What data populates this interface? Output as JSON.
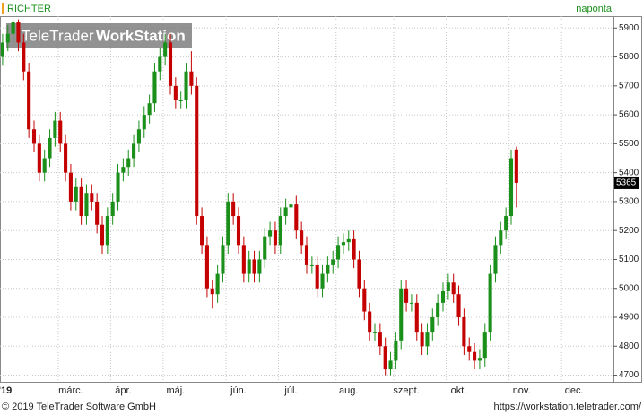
{
  "header": {
    "symbol": "RICHTER",
    "interval": "naponta"
  },
  "watermark": {
    "brand": "TeleTrader",
    "product": "WorkStation"
  },
  "footer": {
    "copyright": "© 2019 TeleTrader Software GmbH",
    "url": "https://workstation.teletrader.com/"
  },
  "chart_data": {
    "type": "candlestick",
    "categories": [
      null,
      "'19",
      null,
      null,
      null,
      null,
      null,
      null,
      null,
      null,
      null,
      null,
      null,
      "márc.",
      null,
      null,
      null,
      null,
      null,
      null,
      null,
      null,
      null,
      "ápr.",
      null,
      null,
      null,
      null,
      null,
      null,
      null,
      null,
      null,
      "máj.",
      null,
      null,
      null,
      null,
      null,
      null,
      null,
      null,
      null,
      null,
      null,
      "jún.",
      null,
      null,
      null,
      null,
      null,
      null,
      null,
      null,
      null,
      "júl.",
      null,
      null,
      null,
      null,
      null,
      null,
      null,
      null,
      null,
      null,
      "aug.",
      null,
      null,
      null,
      null,
      null,
      null,
      null,
      null,
      null,
      null,
      "szept.",
      null,
      null,
      null,
      null,
      null,
      null,
      null,
      null,
      null,
      "okt.",
      null,
      null,
      null,
      null,
      null,
      null,
      null,
      null,
      null,
      null,
      null,
      "nov.",
      null,
      null,
      null,
      null,
      null,
      null,
      null,
      null,
      null,
      "dec.",
      null,
      null,
      null,
      null,
      null,
      null,
      null
    ],
    "open": [
      5800,
      5850,
      5880,
      5920,
      5850,
      5750,
      5550,
      5500,
      5400,
      5450,
      5520,
      5580,
      5500,
      5400,
      5300,
      5350,
      5250,
      5330,
      5300,
      5220,
      5150,
      5250,
      5300,
      5400,
      5420,
      5450,
      5500,
      5550,
      5600,
      5640,
      5750,
      5800,
      5850,
      5700,
      5650,
      5650,
      5750,
      5700,
      5250,
      5150,
      5000,
      4980,
      5050,
      5150,
      5300,
      5250,
      5150,
      5050,
      5100,
      5050,
      5100,
      5180,
      5200,
      5150,
      5250,
      5280,
      5290,
      5200,
      5150,
      5080,
      5080,
      5000,
      5050,
      5080,
      5100,
      5150,
      5160,
      5170,
      5100,
      5000,
      4920,
      4850,
      4850,
      4800,
      4720,
      4750,
      4820,
      5000,
      4950,
      4950,
      4850,
      4800,
      4850,
      4900,
      4950,
      4990,
      5020,
      4980,
      4900,
      4800,
      4780,
      4750,
      4760,
      4850,
      5050,
      5150,
      5200,
      5250,
      5480,
      null,
      null,
      null,
      null,
      null,
      null,
      null,
      null,
      null,
      null,
      null,
      null,
      null,
      null,
      null,
      null,
      null,
      null
    ],
    "high": [
      5880,
      5910,
      5930,
      5930,
      5880,
      5780,
      5580,
      5530,
      5480,
      5550,
      5610,
      5610,
      5530,
      5430,
      5380,
      5380,
      5360,
      5360,
      5330,
      5250,
      5280,
      5330,
      5430,
      5450,
      5480,
      5530,
      5580,
      5630,
      5670,
      5780,
      5830,
      5880,
      5880,
      5730,
      5680,
      5780,
      5820,
      5730,
      5280,
      5180,
      5030,
      5080,
      5180,
      5330,
      5330,
      5280,
      5180,
      5130,
      5130,
      5130,
      5210,
      5230,
      5230,
      5280,
      5310,
      5310,
      5320,
      5230,
      5180,
      5110,
      5110,
      5080,
      5110,
      5130,
      5180,
      5190,
      5200,
      5200,
      5130,
      5030,
      4950,
      4880,
      4880,
      4830,
      4780,
      4850,
      5030,
      5030,
      4980,
      4980,
      4880,
      4880,
      4930,
      4980,
      5020,
      5050,
      5050,
      5010,
      4930,
      4830,
      4810,
      4790,
      4880,
      5080,
      5180,
      5230,
      5280,
      5480,
      5490,
      null,
      null,
      null,
      null,
      null,
      null,
      null,
      null,
      null,
      null,
      null,
      null,
      null,
      null,
      null,
      null,
      null,
      null
    ],
    "low": [
      5770,
      5820,
      5850,
      5820,
      5720,
      5520,
      5470,
      5370,
      5370,
      5420,
      5490,
      5470,
      5370,
      5270,
      5270,
      5220,
      5220,
      5270,
      5190,
      5120,
      5120,
      5220,
      5270,
      5370,
      5390,
      5420,
      5470,
      5520,
      5570,
      5610,
      5720,
      5770,
      5670,
      5620,
      5620,
      5620,
      5670,
      5220,
      5120,
      4970,
      4930,
      4950,
      5020,
      5120,
      5220,
      5120,
      5020,
      5020,
      5020,
      5020,
      5070,
      5150,
      5120,
      5120,
      5220,
      5250,
      5170,
      5120,
      5050,
      5050,
      4970,
      4970,
      5020,
      5050,
      5070,
      5120,
      5130,
      5070,
      4970,
      4890,
      4820,
      4820,
      4770,
      4700,
      4700,
      4720,
      4790,
      4920,
      4920,
      4820,
      4770,
      4770,
      4820,
      4870,
      4920,
      4960,
      4950,
      4870,
      4770,
      4750,
      4720,
      4720,
      4730,
      4820,
      5020,
      5120,
      5170,
      5220,
      5280,
      null,
      null,
      null,
      null,
      null,
      null,
      null,
      null,
      null,
      null,
      null,
      null,
      null,
      null,
      null,
      null,
      null,
      null
    ],
    "close": [
      5850,
      5880,
      5920,
      5850,
      5750,
      5550,
      5500,
      5400,
      5450,
      5520,
      5580,
      5500,
      5400,
      5300,
      5350,
      5250,
      5330,
      5300,
      5220,
      5150,
      5250,
      5300,
      5400,
      5420,
      5450,
      5500,
      5550,
      5600,
      5640,
      5750,
      5800,
      5850,
      5700,
      5650,
      5650,
      5750,
      5700,
      5250,
      5150,
      5000,
      4980,
      5050,
      5150,
      5300,
      5250,
      5150,
      5050,
      5100,
      5050,
      5100,
      5180,
      5200,
      5150,
      5250,
      5280,
      5290,
      5200,
      5150,
      5080,
      5080,
      5000,
      5050,
      5080,
      5100,
      5150,
      5160,
      5170,
      5100,
      5000,
      4920,
      4850,
      4850,
      4800,
      4720,
      4750,
      4820,
      5000,
      4950,
      4950,
      4850,
      4800,
      4850,
      4900,
      4950,
      4990,
      5020,
      4980,
      4900,
      4800,
      4780,
      4750,
      4760,
      4850,
      5050,
      5150,
      5200,
      5250,
      5450,
      5365,
      null,
      null,
      null,
      null,
      null,
      null,
      null,
      null,
      null,
      null,
      null,
      null,
      null,
      null,
      null,
      null,
      null,
      null
    ],
    "up_color": "#1a8f1a",
    "down_color": "#c40000",
    "ylim": [
      4680,
      5935
    ],
    "yticks": [
      4700,
      4800,
      4900,
      5000,
      5100,
      5200,
      5300,
      5400,
      5500,
      5600,
      5700,
      5800,
      5900
    ],
    "grid": true
  }
}
